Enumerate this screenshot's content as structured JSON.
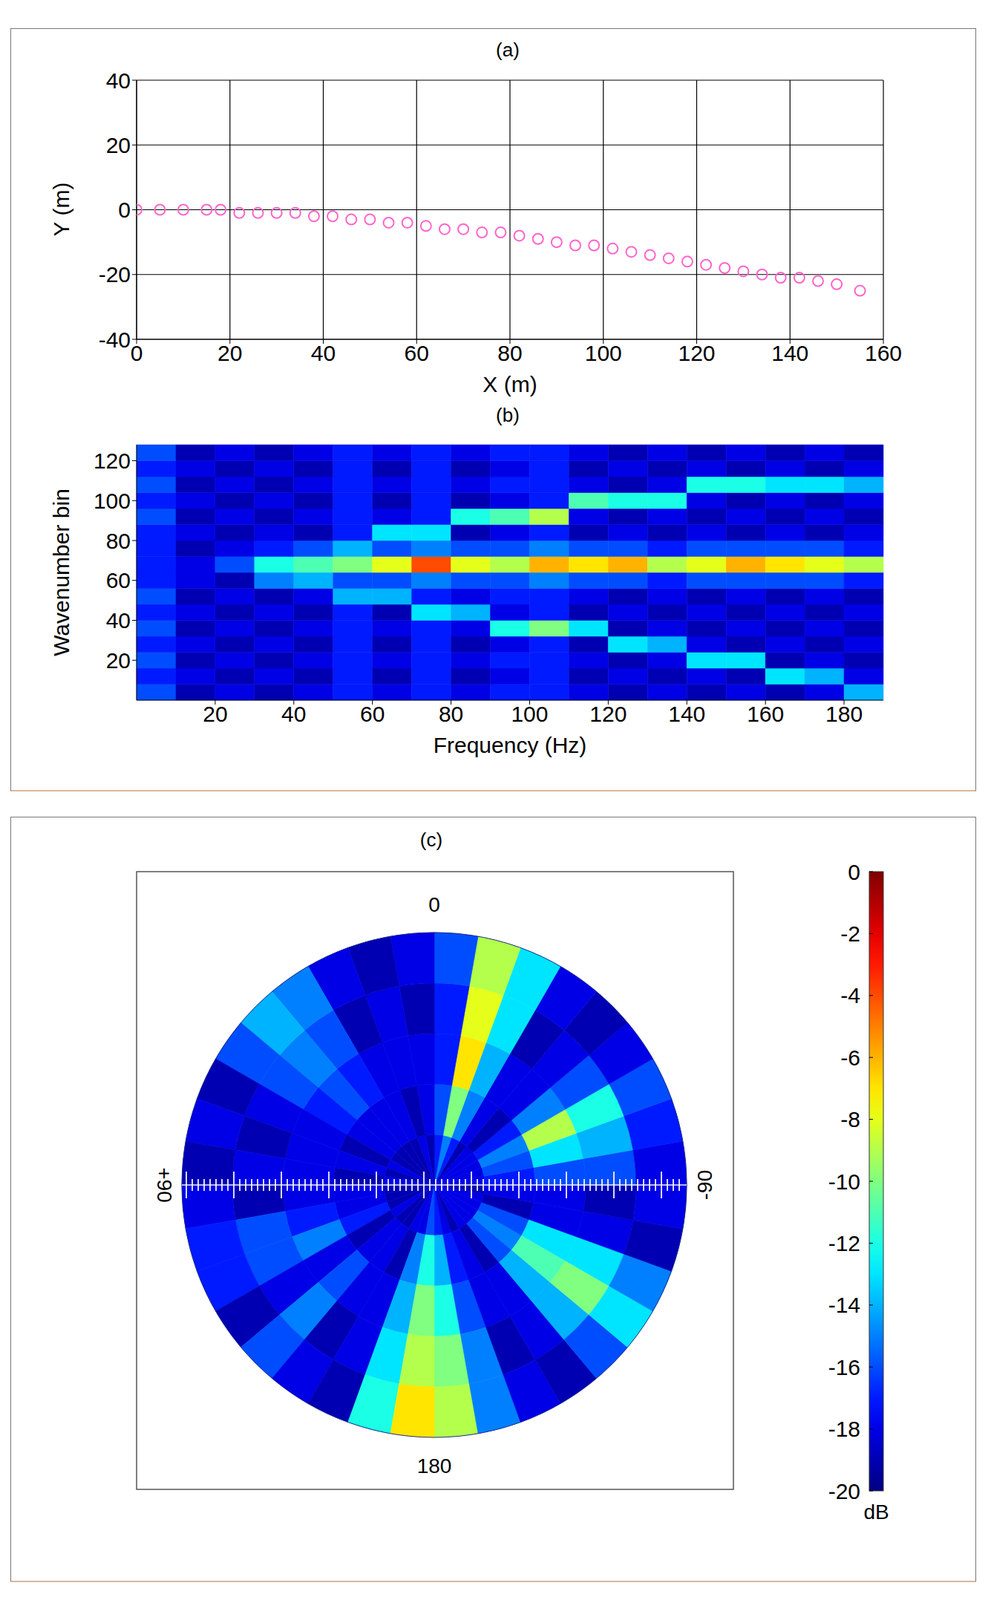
{
  "chart_data": [
    {
      "type": "scatter",
      "title": "(a)",
      "x_label": "X (m)",
      "y_label": "Y (m)",
      "x": [
        0,
        5,
        10,
        15,
        18,
        22,
        26,
        30,
        34,
        38,
        42,
        46,
        50,
        54,
        58,
        62,
        66,
        70,
        74,
        78,
        82,
        86,
        90,
        94,
        98,
        102,
        106,
        110,
        114,
        118,
        122,
        126,
        130,
        134,
        138,
        142,
        146,
        150,
        155
      ],
      "values": [
        0,
        0,
        0,
        0,
        0,
        -1,
        -1,
        -1,
        -1,
        -2,
        -2,
        -3,
        -3,
        -4,
        -4,
        -5,
        -6,
        -6,
        -7,
        -7,
        -8,
        -9,
        -10,
        -11,
        -11,
        -12,
        -13,
        -14,
        -15,
        -16,
        -17,
        -18,
        -19,
        -20,
        -21,
        -21,
        -22,
        -23,
        -25
      ],
      "xlim": [
        0,
        160
      ],
      "ylim": [
        -40,
        40
      ],
      "xticks": [
        0,
        20,
        40,
        60,
        80,
        100,
        120,
        140,
        160
      ],
      "yticks": [
        -40,
        -20,
        0,
        20,
        40
      ],
      "grid": true,
      "color": "#ff66cc",
      "marker": "o"
    },
    {
      "type": "heatmap",
      "title": "(b)",
      "x_label": "Frequency (Hz)",
      "y_label": "Wavenumber bin",
      "x": [
        5,
        15,
        25,
        35,
        45,
        55,
        65,
        75,
        85,
        95,
        105,
        115,
        125,
        135,
        145,
        155,
        165,
        175,
        185
      ],
      "y": [
        4,
        12,
        20,
        28,
        36,
        44,
        52,
        60,
        68,
        76,
        84,
        92,
        100,
        108,
        116,
        124
      ],
      "z": [
        [
          -16,
          -19,
          -18,
          -19,
          -18,
          -17,
          -18,
          -17,
          -18,
          -17,
          -17,
          -18,
          -19,
          -18,
          -19,
          -18,
          -19,
          -18,
          -14
        ],
        [
          -17,
          -18,
          -19,
          -18,
          -19,
          -17,
          -19,
          -17,
          -19,
          -18,
          -17,
          -19,
          -18,
          -19,
          -18,
          -19,
          -13,
          -14,
          -18
        ],
        [
          -16,
          -19,
          -18,
          -19,
          -18,
          -17,
          -18,
          -17,
          -18,
          -17,
          -17,
          -18,
          -19,
          -18,
          -13,
          -13,
          -19,
          -18,
          -19
        ],
        [
          -17,
          -18,
          -19,
          -18,
          -19,
          -17,
          -19,
          -17,
          -19,
          -18,
          -17,
          -19,
          -13,
          -14,
          -18,
          -19,
          -18,
          -19,
          -18
        ],
        [
          -16,
          -19,
          -18,
          -19,
          -18,
          -17,
          -18,
          -17,
          -18,
          -12,
          -10,
          -13,
          -19,
          -18,
          -19,
          -18,
          -19,
          -18,
          -19
        ],
        [
          -17,
          -18,
          -19,
          -18,
          -19,
          -17,
          -19,
          -13,
          -14,
          -18,
          -17,
          -19,
          -18,
          -19,
          -18,
          -19,
          -18,
          -19,
          -18
        ],
        [
          -16,
          -19,
          -18,
          -19,
          -18,
          -14,
          -14,
          -17,
          -18,
          -17,
          -17,
          -18,
          -19,
          -18,
          -19,
          -18,
          -19,
          -18,
          -19
        ],
        [
          -17,
          -18,
          -19,
          -15,
          -14,
          -16,
          -16,
          -15,
          -16,
          -16,
          -15,
          -16,
          -16,
          -17,
          -16,
          -16,
          -16,
          -16,
          -17
        ],
        [
          -17,
          -18,
          -16,
          -12,
          -11,
          -10,
          -8,
          -4,
          -8,
          -9,
          -6,
          -7,
          -6,
          -9,
          -8,
          -6,
          -7,
          -8,
          -9
        ],
        [
          -17,
          -19,
          -18,
          -17,
          -16,
          -14,
          -16,
          -15,
          -16,
          -16,
          -15,
          -16,
          -16,
          -17,
          -16,
          -16,
          -16,
          -16,
          -17
        ],
        [
          -17,
          -18,
          -19,
          -18,
          -19,
          -17,
          -13,
          -13,
          -19,
          -18,
          -17,
          -19,
          -18,
          -19,
          -18,
          -19,
          -18,
          -19,
          -18
        ],
        [
          -16,
          -19,
          -18,
          -19,
          -18,
          -17,
          -18,
          -17,
          -12,
          -11,
          -9,
          -18,
          -19,
          -18,
          -19,
          -18,
          -19,
          -18,
          -19
        ],
        [
          -17,
          -18,
          -19,
          -18,
          -19,
          -17,
          -19,
          -17,
          -19,
          -18,
          -17,
          -11,
          -12,
          -12,
          -18,
          -19,
          -18,
          -19,
          -18
        ],
        [
          -16,
          -19,
          -18,
          -19,
          -18,
          -17,
          -18,
          -17,
          -18,
          -17,
          -17,
          -18,
          -19,
          -18,
          -12,
          -12,
          -13,
          -13,
          -14
        ],
        [
          -17,
          -18,
          -19,
          -18,
          -19,
          -17,
          -19,
          -17,
          -19,
          -18,
          -17,
          -19,
          -18,
          -19,
          -18,
          -19,
          -18,
          -19,
          -18
        ],
        [
          -16,
          -19,
          -18,
          -19,
          -18,
          -17,
          -18,
          -17,
          -18,
          -17,
          -17,
          -18,
          -19,
          -18,
          -19,
          -18,
          -19,
          -18,
          -19
        ]
      ],
      "xlim": [
        0,
        190
      ],
      "ylim": [
        0,
        128
      ],
      "xticks": [
        20,
        40,
        60,
        80,
        100,
        120,
        140,
        160,
        180
      ],
      "yticks": [
        20,
        40,
        60,
        80,
        100,
        120
      ],
      "clim": [
        -20,
        0
      ]
    },
    {
      "type": "polar_heatmap",
      "title": "(c)",
      "theta": [
        -175,
        -165,
        -155,
        -145,
        -135,
        -125,
        -115,
        -105,
        -95,
        -85,
        -75,
        -65,
        -55,
        -45,
        -35,
        -25,
        -15,
        -5,
        5,
        15,
        25,
        35,
        45,
        55,
        65,
        75,
        85,
        95,
        105,
        115,
        125,
        135,
        145,
        155,
        165,
        175
      ],
      "r": [
        0.1,
        0.3,
        0.5,
        0.7,
        0.9
      ],
      "rlim": [
        0,
        1
      ],
      "z": [
        [
          -17,
          -14,
          -12,
          -10,
          -9
        ],
        [
          -18,
          -17,
          -16,
          -15,
          -15
        ],
        [
          -19,
          -18,
          -18,
          -19,
          -18
        ],
        [
          -18,
          -19,
          -18,
          -18,
          -19
        ],
        [
          -18,
          -16,
          -14,
          -14,
          -16
        ],
        [
          -18,
          -15,
          -11,
          -10,
          -13
        ],
        [
          -18,
          -16,
          -13,
          -13,
          -15
        ],
        [
          -18,
          -19,
          -18,
          -18,
          -19
        ],
        [
          -19,
          -18,
          -18,
          -19,
          -18
        ],
        [
          -18,
          -17,
          -16,
          -16,
          -18
        ],
        [
          -18,
          -16,
          -13,
          -14,
          -17
        ],
        [
          -18,
          -15,
          -9,
          -12,
          -16
        ],
        [
          -18,
          -17,
          -15,
          -16,
          -18
        ],
        [
          -18,
          -19,
          -18,
          -18,
          -19
        ],
        [
          -19,
          -18,
          -18,
          -19,
          -18
        ],
        [
          -17,
          -15,
          -14,
          -13,
          -13
        ],
        [
          -15,
          -10,
          -7,
          -8,
          -9
        ],
        [
          -17,
          -16,
          -17,
          -17,
          -16
        ],
        [
          -19,
          -18,
          -18,
          -19,
          -18
        ],
        [
          -18,
          -19,
          -18,
          -18,
          -19
        ],
        [
          -19,
          -18,
          -18,
          -19,
          -18
        ],
        [
          -19,
          -18,
          -17,
          -16,
          -15
        ],
        [
          -19,
          -18,
          -16,
          -15,
          -14
        ],
        [
          -19,
          -18,
          -17,
          -16,
          -16
        ],
        [
          -18,
          -19,
          -18,
          -18,
          -19
        ],
        [
          -19,
          -18,
          -18,
          -19,
          -18
        ],
        [
          -18,
          -19,
          -18,
          -18,
          -19
        ],
        [
          -19,
          -18,
          -18,
          -19,
          -18
        ],
        [
          -19,
          -18,
          -17,
          -16,
          -17
        ],
        [
          -19,
          -17,
          -15,
          -16,
          -17
        ],
        [
          -18,
          -19,
          -18,
          -18,
          -19
        ],
        [
          -19,
          -18,
          -16,
          -15,
          -16
        ],
        [
          -19,
          -18,
          -18,
          -19,
          -18
        ],
        [
          -18,
          -19,
          -18,
          -18,
          -19
        ],
        [
          -18,
          -15,
          -14,
          -13,
          -12
        ],
        [
          -16,
          -12,
          -10,
          -9,
          -7
        ]
      ],
      "angle_ticks": [
        0,
        {
          "value": 90,
          "label": "+90"
        },
        -90,
        180
      ],
      "clim": [
        -20,
        0
      ],
      "cticks": [
        0,
        -2,
        -4,
        -6,
        -8,
        -10,
        -12,
        -14,
        -16,
        -18,
        -20
      ],
      "colorbar_label": "dB"
    }
  ]
}
